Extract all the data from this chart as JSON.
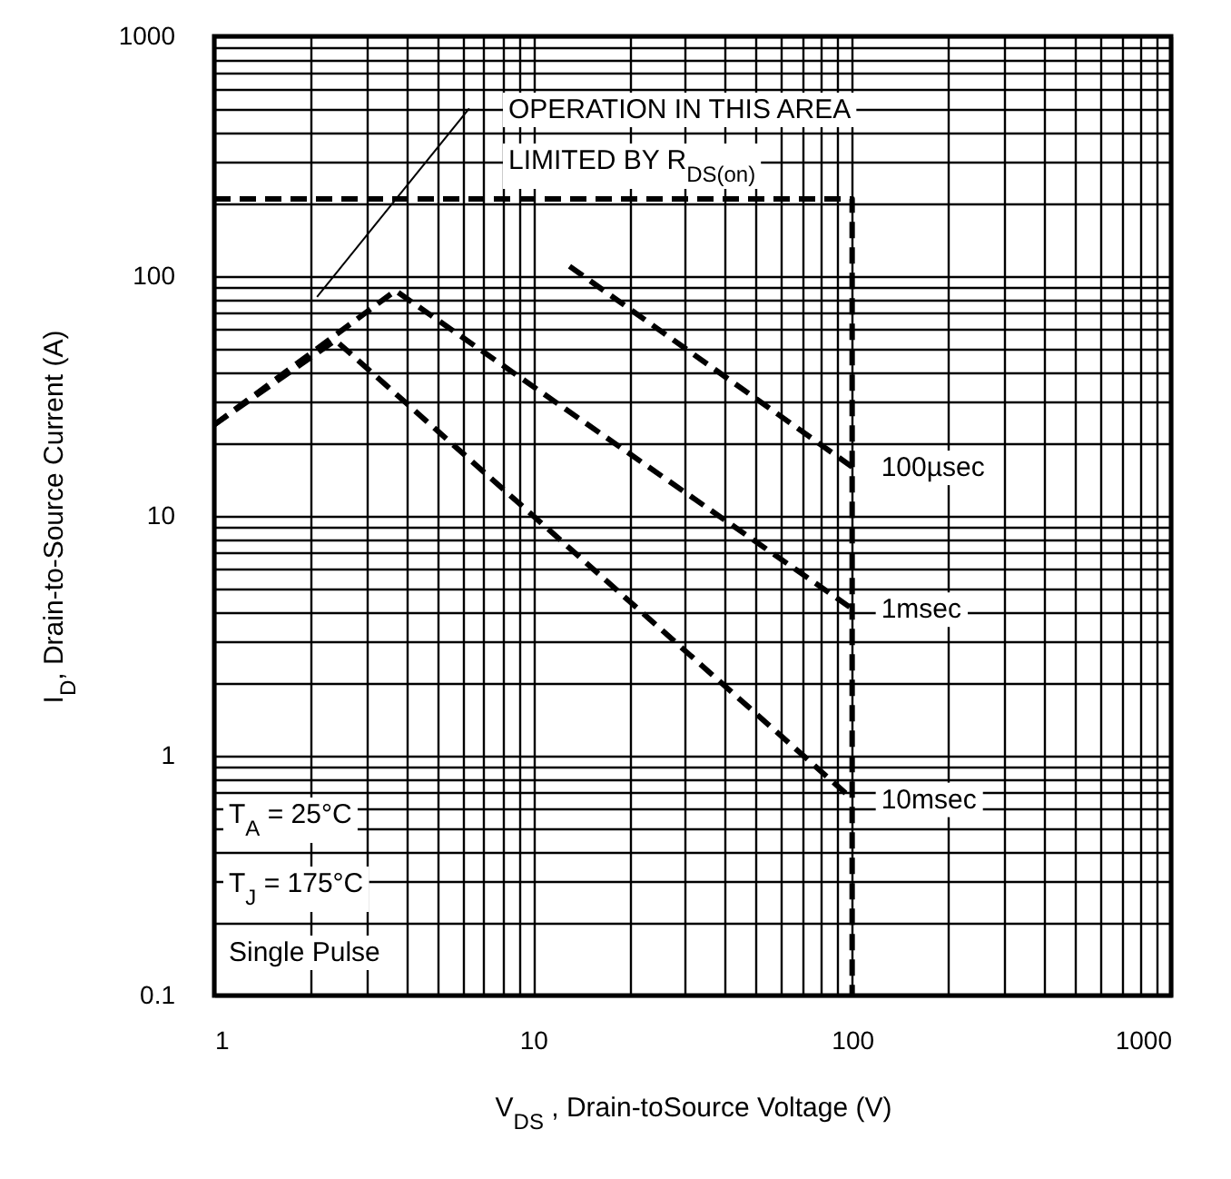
{
  "chart_data": {
    "type": "line",
    "xlabel": "V$_{DS}$ , Drain-toSource Voltage (V)",
    "ylabel": "I$_{D}$, Drain-to-Source Current (A)",
    "log": "xy",
    "grid": true,
    "legend": false,
    "xlim": [
      1,
      1000
    ],
    "ylim": [
      0.1,
      1000
    ],
    "xticks": [
      1,
      {
        "value": 2,
        "label": null
      },
      {
        "value": 3,
        "label": null
      },
      {
        "value": 4,
        "label": null
      },
      {
        "value": 5,
        "label": null
      },
      {
        "value": 6,
        "label": null
      },
      {
        "value": 7,
        "label": null
      },
      {
        "value": 8,
        "label": null
      },
      {
        "value": 9,
        "label": null
      },
      10,
      {
        "value": 20,
        "label": null
      },
      {
        "value": 30,
        "label": null
      },
      {
        "value": 40,
        "label": null
      },
      {
        "value": 50,
        "label": null
      },
      {
        "value": 60,
        "label": null
      },
      {
        "value": 70,
        "label": null
      },
      {
        "value": 80,
        "label": null
      },
      {
        "value": 90,
        "label": null
      },
      100,
      {
        "value": 200,
        "label": null
      },
      {
        "value": 300,
        "label": null
      },
      {
        "value": 400,
        "label": null
      },
      {
        "value": 500,
        "label": null
      },
      {
        "value": 600,
        "label": null
      },
      {
        "value": 700,
        "label": null
      },
      {
        "value": 800,
        "label": null
      },
      {
        "value": 900,
        "label": null
      },
      1000
    ],
    "yticks": [
      0.1,
      {
        "value": 0.2,
        "label": null
      },
      {
        "value": 0.3,
        "label": null
      },
      {
        "value": 0.4,
        "label": null
      },
      {
        "value": 0.5,
        "label": null
      },
      {
        "value": 0.6,
        "label": null
      },
      {
        "value": 0.7,
        "label": null
      },
      {
        "value": 0.8,
        "label": null
      },
      {
        "value": 0.9,
        "label": null
      },
      1,
      {
        "value": 2,
        "label": null
      },
      {
        "value": 3,
        "label": null
      },
      {
        "value": 4,
        "label": null
      },
      {
        "value": 5,
        "label": null
      },
      {
        "value": 6,
        "label": null
      },
      {
        "value": 7,
        "label": null
      },
      {
        "value": 8,
        "label": null
      },
      {
        "value": 9,
        "label": null
      },
      10,
      {
        "value": 20,
        "label": null
      },
      {
        "value": 30,
        "label": null
      },
      {
        "value": 40,
        "label": null
      },
      {
        "value": 50,
        "label": null
      },
      {
        "value": 60,
        "label": null
      },
      {
        "value": 70,
        "label": null
      },
      {
        "value": 80,
        "label": null
      },
      {
        "value": 90,
        "label": null
      },
      100,
      {
        "value": 200,
        "label": null
      },
      {
        "value": 300,
        "label": null
      },
      {
        "value": 400,
        "label": null
      },
      {
        "value": 500,
        "label": null
      },
      {
        "value": 600,
        "label": null
      },
      {
        "value": 700,
        "label": null
      },
      {
        "value": 800,
        "label": null
      },
      {
        "value": 900,
        "label": null
      },
      1000
    ],
    "series": [
      {
        "color": "#000000",
        "line_style": "dashed",
        "x": [
          1,
          100,
          100
        ],
        "values": [
          210,
          210,
          0.1
        ]
      },
      {
        "name": "100µsec",
        "color": "#000000",
        "line_style": "dashed",
        "x": [
          13,
          100
        ],
        "values": [
          110,
          16
        ]
      },
      {
        "name": "1msec",
        "color": "#000000",
        "line_style": "dashed",
        "x": [
          1,
          3.7,
          100
        ],
        "values": [
          24,
          87,
          4.1
        ]
      },
      {
        "name": "10msec",
        "color": "#000000",
        "line_style": "dashed",
        "x": [
          1,
          2.4,
          100
        ],
        "values": [
          24,
          54,
          0.66
        ]
      },
      {
        "color": "#000000",
        "line_style": "solid",
        "x": [
          2.1,
          6.3
        ],
        "values": [
          82,
          500
        ]
      }
    ],
    "annotations": [
      "OPERATION IN THIS AREA",
      "LIMITED BY R$_{DS(on)}$",
      "T$_{A}$ = 25°C",
      "T$_{J}$ = 175°C",
      "Single Pulse"
    ]
  }
}
